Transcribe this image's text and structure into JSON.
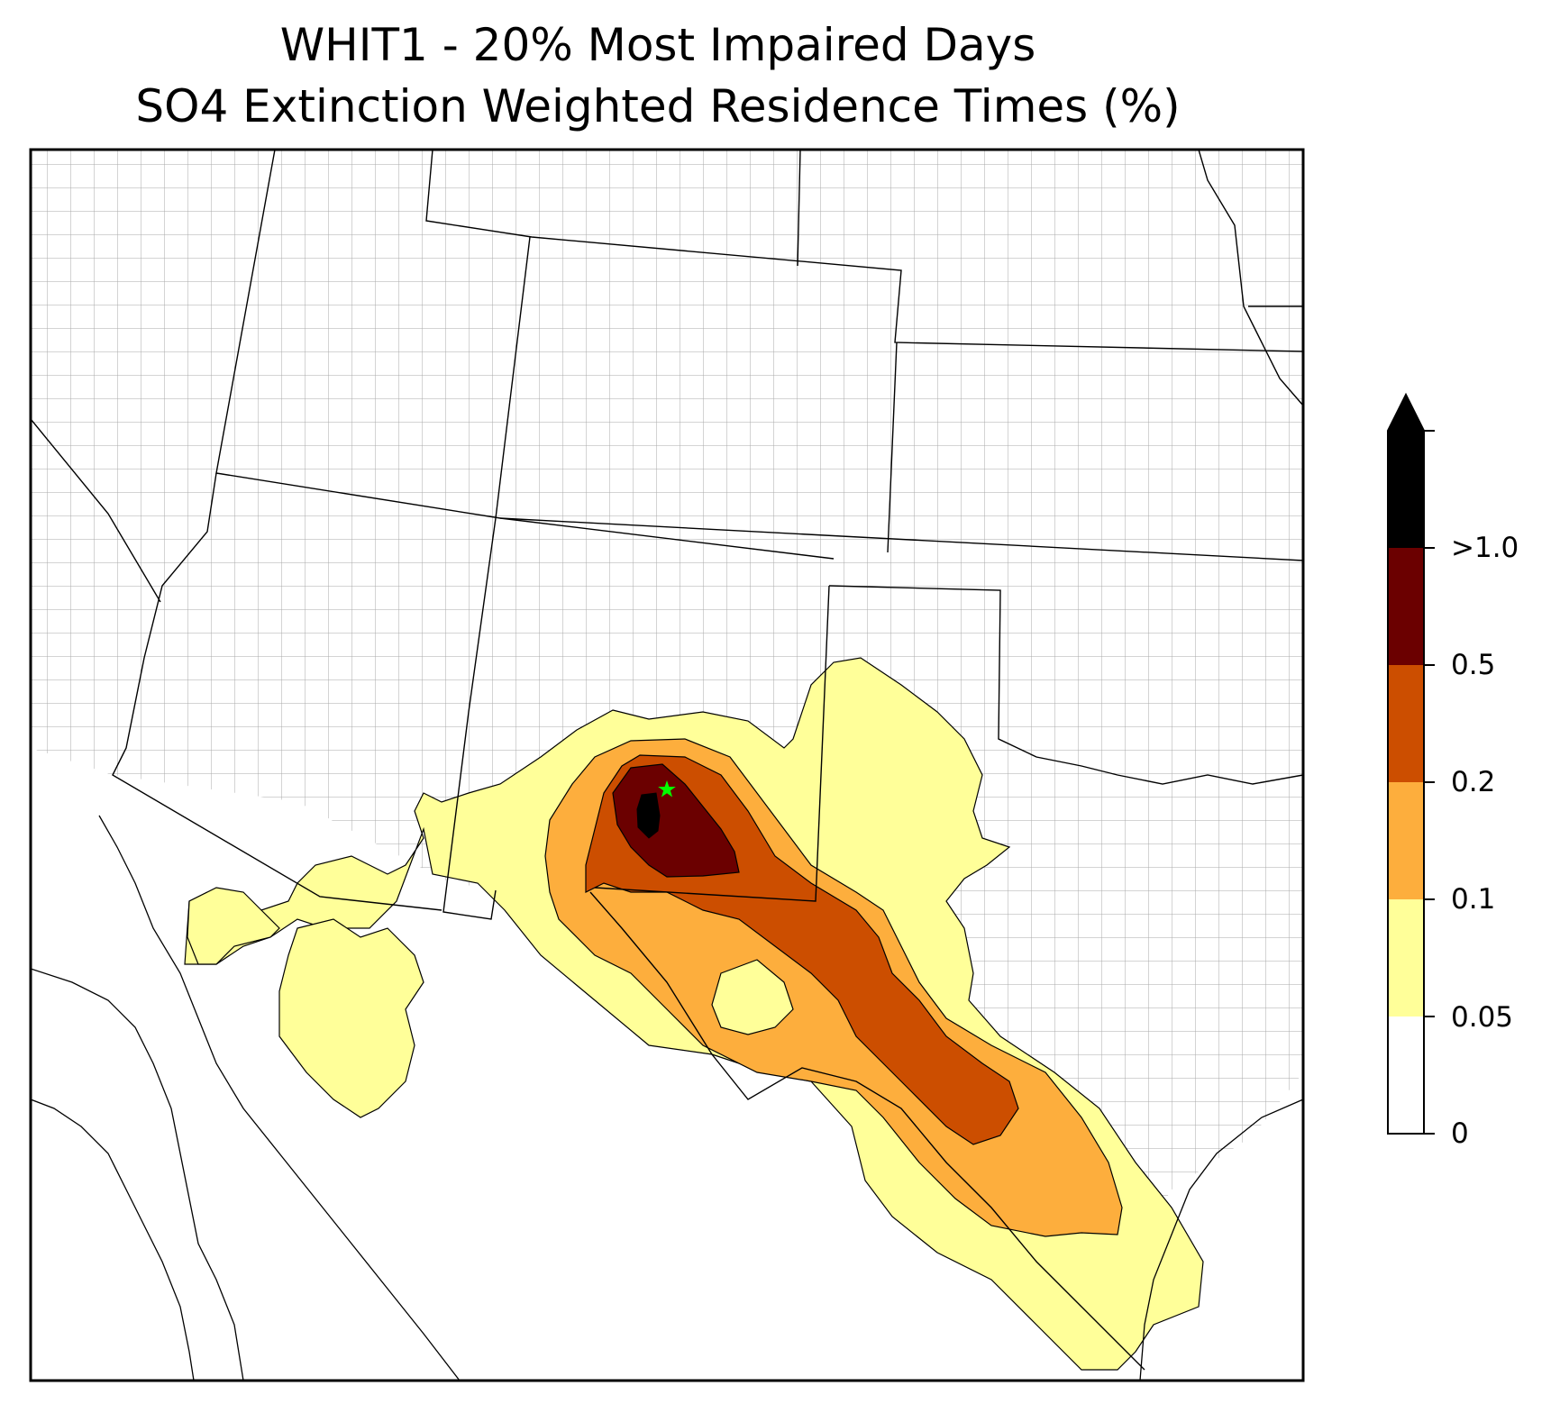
{
  "title": {
    "line1": "WHIT1 - 20% Most Impaired Days",
    "line2": "SO4 Extinction Weighted Residence Times (%)"
  },
  "colorbar": {
    "extend": "max",
    "bins": [
      {
        "lower": "0",
        "color": "#ffffff"
      },
      {
        "lower": "0.05",
        "color": "#ffff99"
      },
      {
        "lower": "0.1",
        "color": "#fdae3d"
      },
      {
        "lower": "0.2",
        "color": "#cc4e00"
      },
      {
        "lower": "0.5",
        "color": "#6b0000"
      },
      {
        "lower": ">1.0",
        "color": "#000000"
      }
    ]
  },
  "map": {
    "site_marker_color": "#00ff00",
    "state_line_color": "#000000",
    "county_line_color": "#aaaaaa"
  }
}
